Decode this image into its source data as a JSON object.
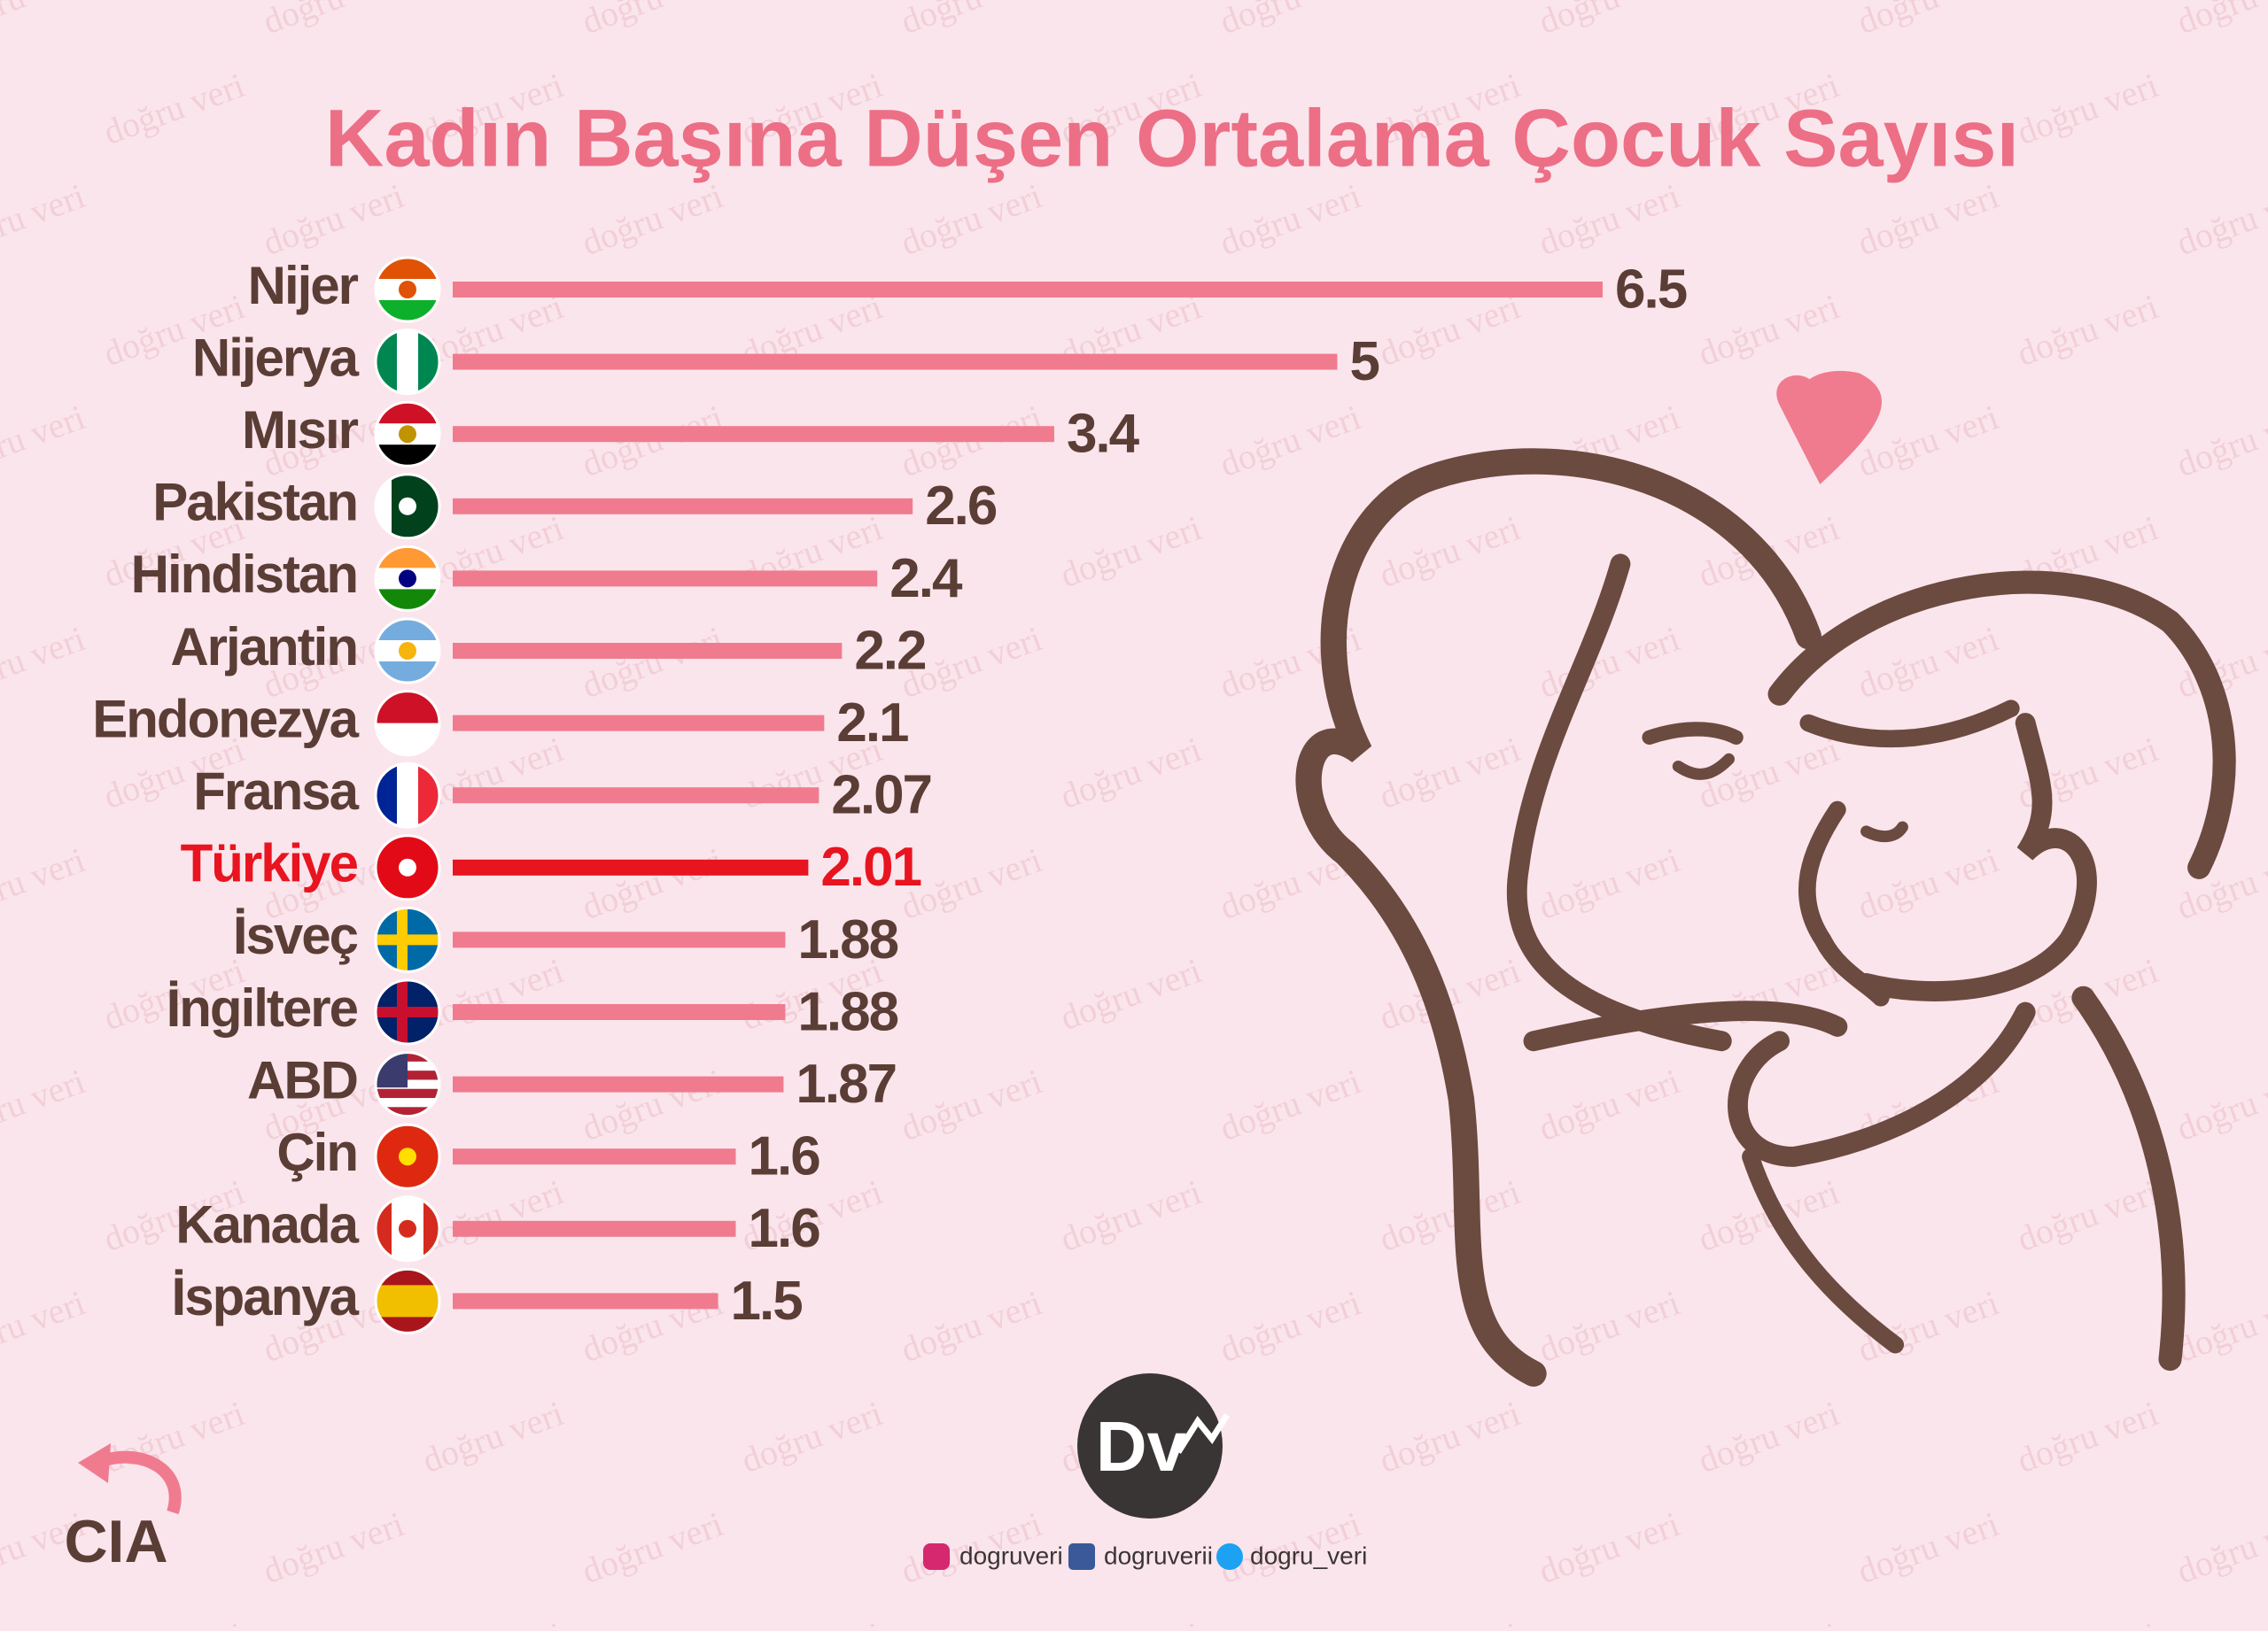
{
  "chart_data": {
    "type": "lollipop-bar",
    "title": "Kadın Başına Düşen Ortalama Çocuk Sayısı",
    "categories": [
      "Nijer",
      "Nijerya",
      "Mısır",
      "Pakistan",
      "Hindistan",
      "Arjantin",
      "Endonezya",
      "Fransa",
      "Türkiye",
      "İsveç",
      "İngiltere",
      "ABD",
      "Çin",
      "Kanada",
      "İspanya"
    ],
    "values": [
      6.5,
      5,
      3.4,
      2.6,
      2.4,
      2.2,
      2.1,
      2.07,
      2.01,
      1.88,
      1.88,
      1.87,
      1.6,
      1.6,
      1.5
    ],
    "bar_colors": [
      "#f07b8e",
      "#f07b8e",
      "#f07b8e",
      "#f07b8e",
      "#f07b8e",
      "#f07b8e",
      "#f07b8e",
      "#f07b8e",
      "#e8141f",
      "#f07b8e",
      "#f07b8e",
      "#f07b8e",
      "#f07b8e",
      "#f07b8e",
      "#f07b8e"
    ],
    "text_colors": [
      "#5a3d35",
      "#5a3d35",
      "#5a3d35",
      "#5a3d35",
      "#5a3d35",
      "#5a3d35",
      "#5a3d35",
      "#5a3d35",
      "#e8141f",
      "#5a3d35",
      "#5a3d35",
      "#5a3d35",
      "#5a3d35",
      "#5a3d35",
      "#5a3d35"
    ]
  },
  "source": "CIA",
  "brand": "Dv",
  "watermark": "doğru veri",
  "social": {
    "instagram": "dogruveri",
    "facebook": "dogruverii",
    "twitter": "dogru_veri"
  }
}
